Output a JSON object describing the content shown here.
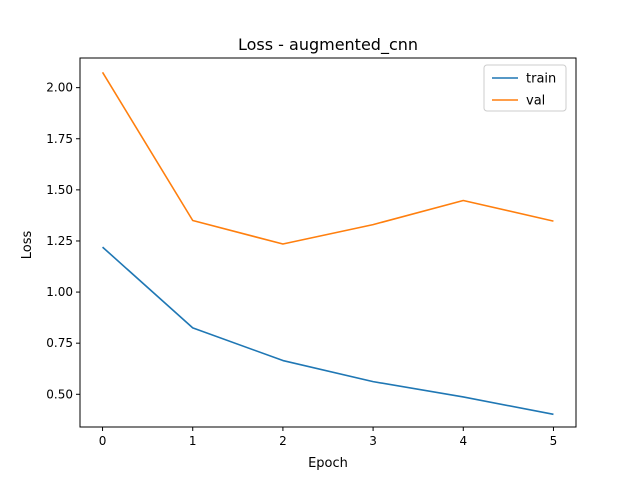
{
  "chart_data": {
    "type": "line",
    "title": "Loss - augmented_cnn",
    "xlabel": "Epoch",
    "ylabel": "Loss",
    "x": [
      0,
      1,
      2,
      3,
      4,
      5
    ],
    "xlim": [
      -0.25,
      5.25
    ],
    "ylim": [
      0.34,
      2.145
    ],
    "xticks": [
      0,
      1,
      2,
      3,
      4,
      5
    ],
    "yticks": [
      0.5,
      0.75,
      1.0,
      1.25,
      1.5,
      1.75,
      2.0
    ],
    "ytick_labels": [
      "0.50",
      "0.75",
      "1.00",
      "1.25",
      "1.50",
      "1.75",
      "2.00"
    ],
    "grid": false,
    "legend": "top-right",
    "series": [
      {
        "name": "train",
        "color": "#1f77b4",
        "values": [
          1.22,
          0.825,
          0.665,
          0.562,
          0.487,
          0.402
        ]
      },
      {
        "name": "val",
        "color": "#ff7f0e",
        "values": [
          2.075,
          1.35,
          1.235,
          1.33,
          1.448,
          1.347
        ]
      }
    ]
  }
}
